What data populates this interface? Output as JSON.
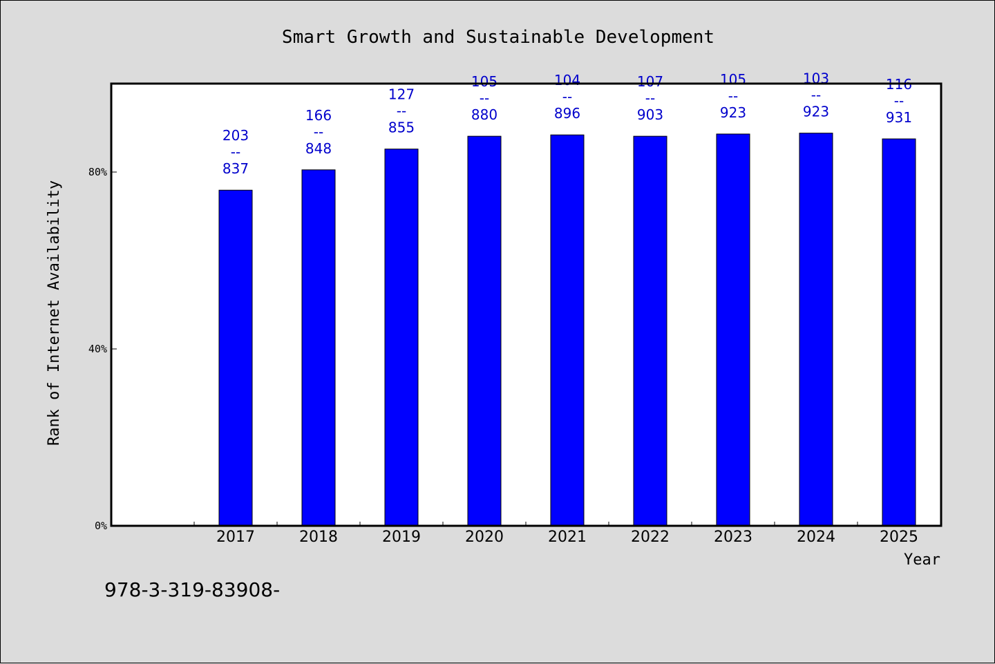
{
  "chart_data": {
    "type": "bar",
    "title": "Smart Growth and Sustainable Development",
    "xlabel": "Year",
    "ylabel": "Rank of Internet Availability",
    "categories": [
      "2017",
      "2018",
      "2019",
      "2020",
      "2021",
      "2022",
      "2023",
      "2024",
      "2025"
    ],
    "values": [
      75.9,
      80.5,
      85.2,
      88.1,
      88.4,
      88.1,
      88.6,
      88.8,
      87.5
    ],
    "value_unit": "%",
    "ylim": [
      0,
      100
    ],
    "y_ticks": [
      {
        "value": 0,
        "label": "0%"
      },
      {
        "value": 40,
        "label": "40%"
      },
      {
        "value": 80,
        "label": "80%"
      }
    ],
    "bar_labels": [
      {
        "top": "203",
        "sep": "--",
        "bottom": "837"
      },
      {
        "top": "166",
        "sep": "--",
        "bottom": "848"
      },
      {
        "top": "127",
        "sep": "--",
        "bottom": "855"
      },
      {
        "top": "105",
        "sep": "--",
        "bottom": "880"
      },
      {
        "top": "104",
        "sep": "--",
        "bottom": "896"
      },
      {
        "top": "107",
        "sep": "--",
        "bottom": "903"
      },
      {
        "top": "105",
        "sep": "--",
        "bottom": "923"
      },
      {
        "top": "103",
        "sep": "--",
        "bottom": "923"
      },
      {
        "top": "116",
        "sep": "--",
        "bottom": "931"
      }
    ],
    "grid": false,
    "bar_color": "#0000ff",
    "label_color": "#0000cc",
    "background_color": "#dcdcdc",
    "plot_background_color": "#ffffff"
  },
  "footer": {
    "text": "978-3-319-83908-"
  }
}
